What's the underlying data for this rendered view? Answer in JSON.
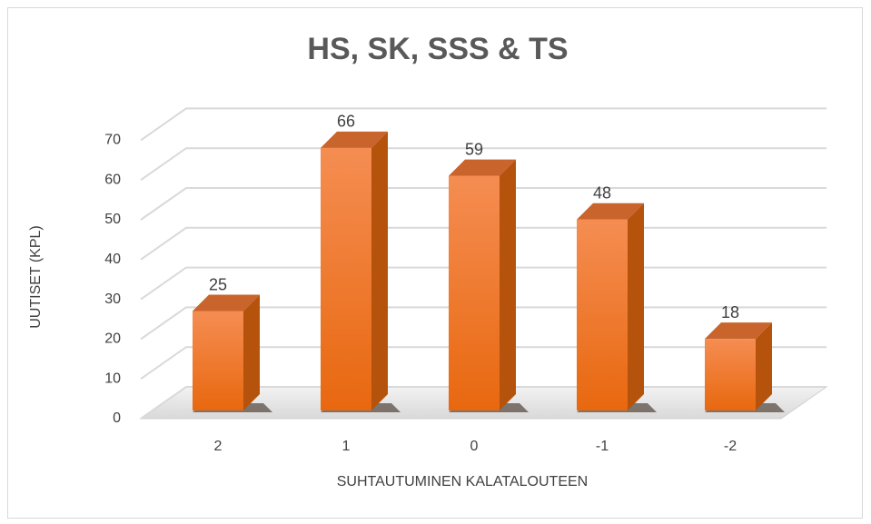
{
  "chart_data": {
    "type": "bar3d",
    "title": "HS, SK, SSS & TS",
    "x_label": "SUHTAUTUMINEN KALATALOUTEEN",
    "y_label": "UUTISET (KPL)",
    "categories": [
      "2",
      "1",
      "0",
      "-1",
      "-2"
    ],
    "values": [
      25,
      66,
      59,
      48,
      18
    ],
    "color": "#f07a2a",
    "ylim": [
      0,
      70
    ],
    "yticks": [
      0,
      10,
      20,
      30,
      40,
      50,
      60,
      70
    ],
    "grid": true
  }
}
